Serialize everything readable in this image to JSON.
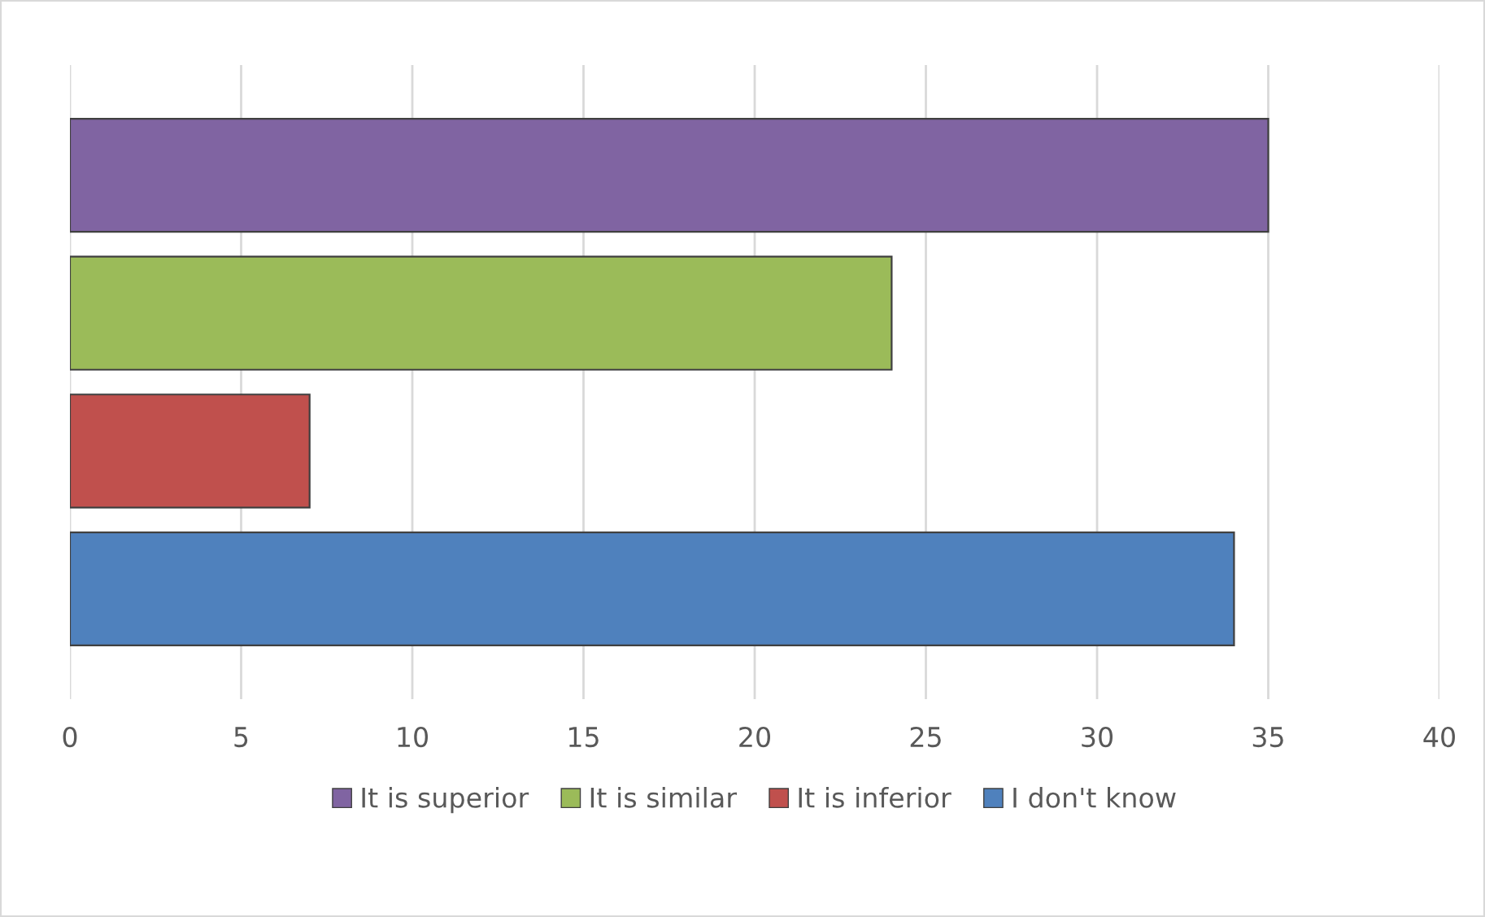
{
  "chart_data": {
    "type": "bar",
    "orientation": "horizontal",
    "categories": [
      null
    ],
    "series": [
      {
        "name": "It is superior",
        "color": "#8064a2",
        "values": [
          35
        ]
      },
      {
        "name": "It is similar",
        "color": "#9bbb59",
        "values": [
          24
        ]
      },
      {
        "name": "It is inferior",
        "color": "#c0504d",
        "values": [
          7
        ]
      },
      {
        "name": "I don't know",
        "color": "#4f81bd",
        "values": [
          34
        ]
      }
    ],
    "xlim": [
      0,
      40
    ],
    "xticks": [
      0,
      5,
      10,
      15,
      20,
      25,
      30,
      35,
      40
    ],
    "grid": "x",
    "legend": "bottom"
  }
}
